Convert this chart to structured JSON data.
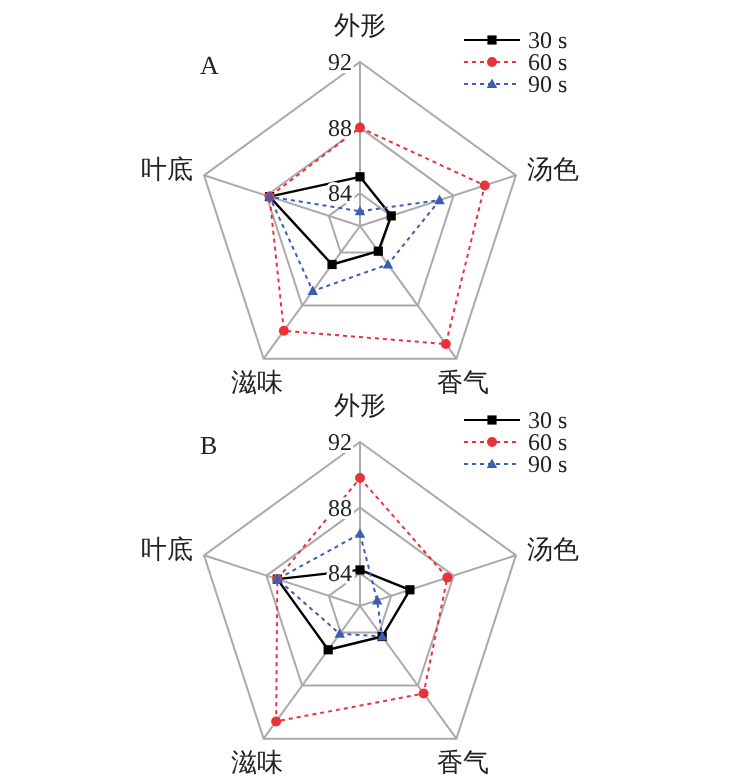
{
  "chart_data": [
    {
      "type": "radar",
      "title": "A",
      "categories": [
        "外形",
        "汤色",
        "香气",
        "滋味",
        "叶底"
      ],
      "ylim": [
        82,
        92
      ],
      "yticks": [
        84,
        88,
        92
      ],
      "grid": true,
      "legend": "top right",
      "series": [
        {
          "name": "30 s",
          "color": "#000000",
          "marker": "square",
          "line_style": "solid",
          "values": [
            85.0,
            84.0,
            83.9,
            84.9,
            87.8
          ]
        },
        {
          "name": "60 s",
          "color": "#e8333b",
          "marker": "circle",
          "line_style": "dotted",
          "values": [
            88.0,
            90.0,
            90.9,
            89.9,
            87.8
          ]
        },
        {
          "name": "90 s",
          "color": "#3a5fb0",
          "marker": "triangle",
          "line_style": "dotted",
          "values": [
            82.9,
            87.1,
            84.9,
            86.9,
            87.8
          ]
        }
      ]
    },
    {
      "type": "radar",
      "title": "B",
      "categories": [
        "外形",
        "汤色",
        "香气",
        "滋味",
        "叶底"
      ],
      "ylim": [
        82,
        92
      ],
      "yticks": [
        84,
        88,
        92
      ],
      "grid": true,
      "legend": "top right",
      "series": [
        {
          "name": "30 s",
          "color": "#000000",
          "marker": "square",
          "line_style": "solid",
          "values": [
            84.2,
            85.2,
            84.3,
            85.3,
            87.3
          ]
        },
        {
          "name": "60 s",
          "color": "#e8333b",
          "marker": "circle",
          "line_style": "dotted",
          "values": [
            89.8,
            87.6,
            88.6,
            90.7,
            87.3
          ]
        },
        {
          "name": "90 s",
          "color": "#3a5fb0",
          "marker": "triangle",
          "line_style": "dotted",
          "values": [
            86.4,
            83.1,
            84.3,
            84.1,
            87.3
          ]
        }
      ]
    }
  ]
}
